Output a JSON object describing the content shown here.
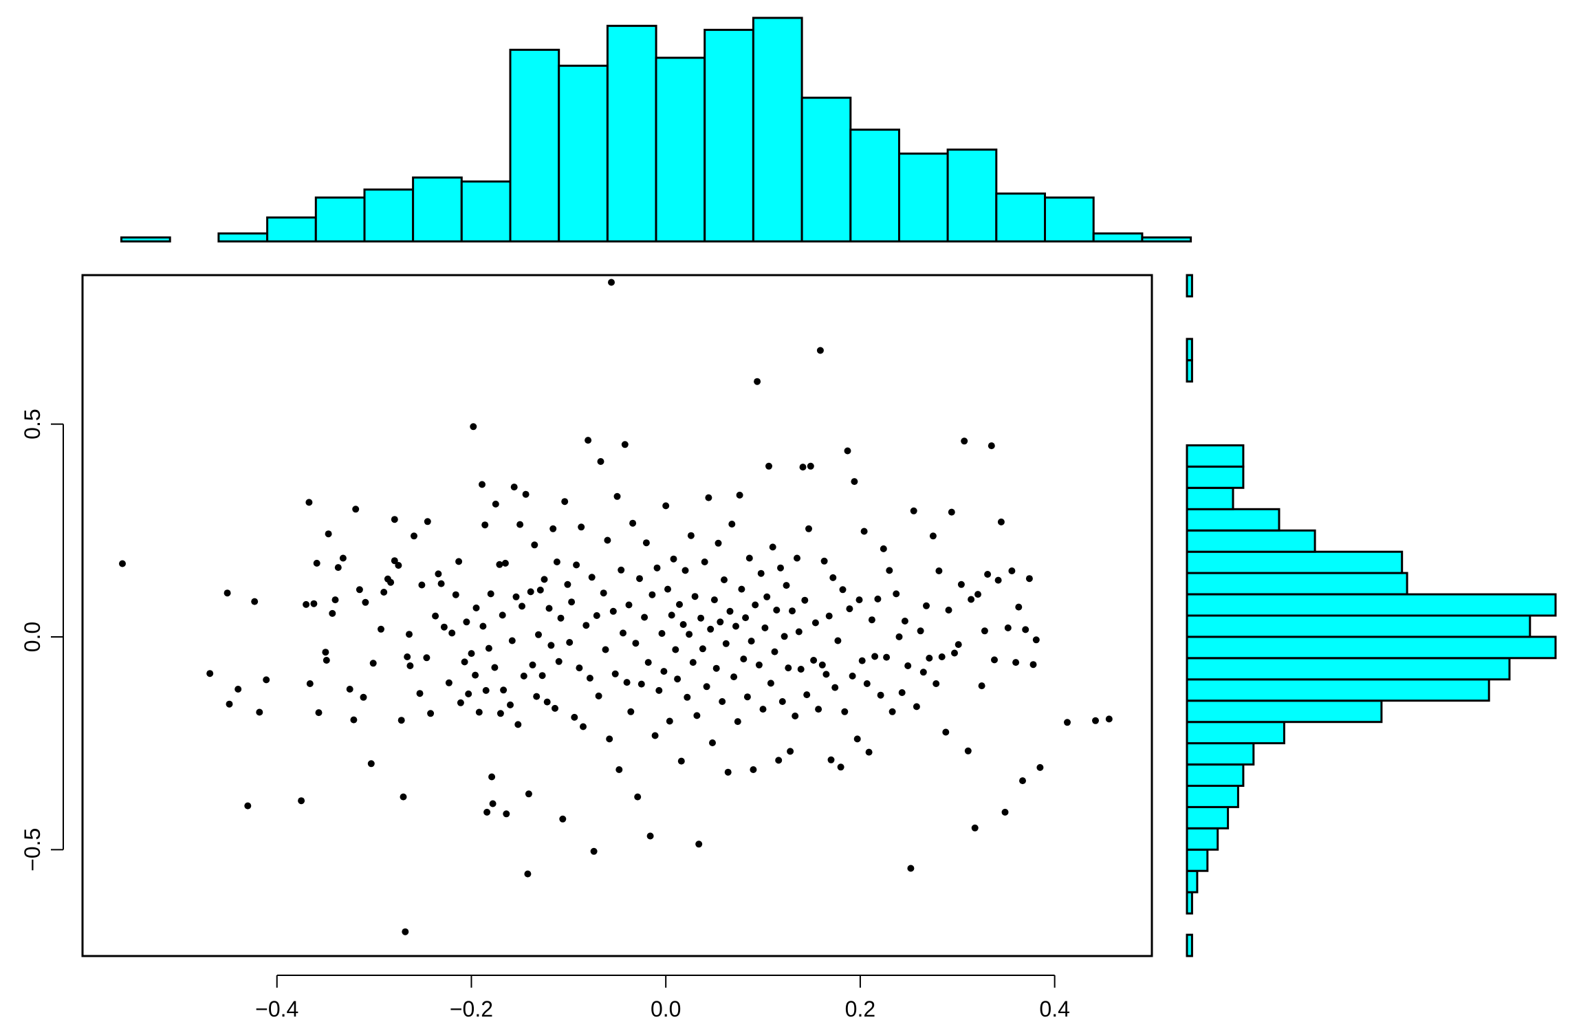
{
  "colors": {
    "bar_fill": "#00ffff",
    "stroke": "#000000",
    "point": "#000000"
  },
  "chart_data": [
    {
      "type": "scatter",
      "x_ticks": [
        -0.4,
        -0.2,
        0.0,
        0.2,
        0.4
      ],
      "x_tick_labels": [
        "−0.4",
        "−0.2",
        "0.0",
        "0.2",
        "0.4"
      ],
      "y_ticks": [
        -0.5,
        0.0,
        0.5
      ],
      "y_tick_labels": [
        "−0.5",
        "0.0",
        "0.5"
      ],
      "xlim": [
        -0.6,
        0.5
      ],
      "ylim": [
        -0.75,
        0.85
      ],
      "points": [
        [
          -0.559,
          0.172
        ],
        [
          -0.469,
          -0.086
        ],
        [
          -0.451,
          0.103
        ],
        [
          -0.449,
          -0.158
        ],
        [
          -0.44,
          -0.123
        ],
        [
          -0.43,
          -0.397
        ],
        [
          -0.423,
          0.083
        ],
        [
          -0.418,
          -0.177
        ],
        [
          -0.411,
          -0.101
        ],
        [
          -0.375,
          -0.385
        ],
        [
          -0.37,
          0.076
        ],
        [
          -0.367,
          0.316
        ],
        [
          -0.366,
          -0.11
        ],
        [
          -0.362,
          0.078
        ],
        [
          -0.359,
          0.173
        ],
        [
          -0.357,
          -0.178
        ],
        [
          -0.35,
          -0.036
        ],
        [
          -0.349,
          -0.055
        ],
        [
          -0.347,
          0.242
        ],
        [
          -0.343,
          0.055
        ],
        [
          -0.34,
          0.087
        ],
        [
          -0.337,
          0.163
        ],
        [
          -0.332,
          0.185
        ],
        [
          -0.325,
          -0.123
        ],
        [
          -0.321,
          -0.195
        ],
        [
          -0.319,
          0.3
        ],
        [
          -0.315,
          0.111
        ],
        [
          -0.311,
          -0.142
        ],
        [
          -0.309,
          0.081
        ],
        [
          -0.303,
          -0.298
        ],
        [
          -0.301,
          -0.062
        ],
        [
          -0.293,
          0.018
        ],
        [
          -0.29,
          0.105
        ],
        [
          -0.286,
          0.136
        ],
        [
          -0.283,
          0.128
        ],
        [
          -0.279,
          0.179
        ],
        [
          -0.279,
          0.276
        ],
        [
          -0.275,
          0.168
        ],
        [
          -0.272,
          -0.196
        ],
        [
          -0.27,
          -0.376
        ],
        [
          -0.268,
          -0.693
        ],
        [
          -0.266,
          -0.047
        ],
        [
          -0.264,
          0.006
        ],
        [
          -0.263,
          -0.068
        ],
        [
          -0.259,
          0.237
        ],
        [
          -0.253,
          -0.133
        ],
        [
          -0.251,
          0.122
        ],
        [
          -0.246,
          -0.049
        ],
        [
          -0.245,
          0.271
        ],
        [
          -0.242,
          -0.18
        ],
        [
          -0.237,
          0.049
        ],
        [
          -0.234,
          0.148
        ],
        [
          -0.231,
          0.125
        ],
        [
          -0.228,
          0.023
        ],
        [
          -0.223,
          -0.108
        ],
        [
          -0.22,
          0.009
        ],
        [
          -0.216,
          0.099
        ],
        [
          -0.213,
          0.177
        ],
        [
          -0.211,
          -0.155
        ],
        [
          -0.207,
          -0.059
        ],
        [
          -0.205,
          0.035
        ],
        [
          -0.203,
          -0.134
        ],
        [
          -0.2,
          -0.039
        ],
        [
          -0.198,
          0.494
        ],
        [
          -0.196,
          -0.09
        ],
        [
          -0.195,
          0.068
        ],
        [
          -0.192,
          -0.177
        ],
        [
          -0.189,
          0.358
        ],
        [
          -0.188,
          0.025
        ],
        [
          -0.186,
          0.263
        ],
        [
          -0.185,
          -0.126
        ],
        [
          -0.184,
          -0.412
        ],
        [
          -0.182,
          -0.027
        ],
        [
          -0.18,
          0.101
        ],
        [
          -0.179,
          -0.329
        ],
        [
          -0.178,
          -0.392
        ],
        [
          -0.176,
          -0.072
        ],
        [
          -0.175,
          0.312
        ],
        [
          -0.171,
          0.17
        ],
        [
          -0.17,
          -0.18
        ],
        [
          -0.168,
          0.051
        ],
        [
          -0.167,
          -0.125
        ],
        [
          -0.165,
          0.173
        ],
        [
          -0.164,
          -0.416
        ],
        [
          -0.16,
          -0.16
        ],
        [
          -0.158,
          -0.009
        ],
        [
          -0.156,
          0.352
        ],
        [
          -0.154,
          0.094
        ],
        [
          -0.152,
          -0.206
        ],
        [
          -0.15,
          0.264
        ],
        [
          -0.148,
          0.072
        ],
        [
          -0.146,
          -0.092
        ],
        [
          -0.144,
          0.335
        ],
        [
          -0.142,
          -0.557
        ],
        [
          -0.141,
          -0.369
        ],
        [
          -0.139,
          0.106
        ],
        [
          -0.137,
          -0.066
        ],
        [
          -0.135,
          0.216
        ],
        [
          -0.133,
          -0.14
        ],
        [
          -0.131,
          0.005
        ],
        [
          -0.129,
          0.11
        ],
        [
          -0.127,
          -0.091
        ],
        [
          -0.125,
          0.135
        ],
        [
          -0.122,
          -0.153
        ],
        [
          -0.12,
          0.067
        ],
        [
          -0.118,
          -0.02
        ],
        [
          -0.116,
          0.254
        ],
        [
          -0.114,
          -0.168
        ],
        [
          -0.112,
          0.176
        ],
        [
          -0.11,
          -0.058
        ],
        [
          -0.108,
          0.044
        ],
        [
          -0.106,
          -0.428
        ],
        [
          -0.104,
          0.318
        ],
        [
          -0.101,
          0.123
        ],
        [
          -0.099,
          -0.013
        ],
        [
          -0.097,
          0.082
        ],
        [
          -0.094,
          -0.189
        ],
        [
          -0.092,
          0.169
        ],
        [
          -0.089,
          -0.073
        ],
        [
          -0.087,
          0.258
        ],
        [
          -0.085,
          -0.211
        ],
        [
          -0.082,
          0.027
        ],
        [
          -0.08,
          0.462
        ],
        [
          -0.078,
          -0.097
        ],
        [
          -0.076,
          0.14
        ],
        [
          -0.074,
          -0.504
        ],
        [
          -0.071,
          0.05
        ],
        [
          -0.069,
          -0.139
        ],
        [
          -0.067,
          0.412
        ],
        [
          -0.064,
          0.103
        ],
        [
          -0.062,
          -0.03
        ],
        [
          -0.06,
          0.227
        ],
        [
          -0.058,
          -0.24
        ],
        [
          -0.056,
          0.833
        ],
        [
          -0.054,
          0.06
        ],
        [
          -0.052,
          -0.087
        ],
        [
          -0.05,
          0.33
        ],
        [
          -0.048,
          -0.312
        ],
        [
          -0.046,
          0.157
        ],
        [
          -0.044,
          0.009
        ],
        [
          -0.042,
          0.452
        ],
        [
          -0.04,
          -0.107
        ],
        [
          -0.038,
          0.075
        ],
        [
          -0.036,
          -0.176
        ],
        [
          -0.034,
          0.267
        ],
        [
          -0.031,
          -0.015
        ],
        [
          -0.029,
          -0.376
        ],
        [
          -0.027,
          0.137
        ],
        [
          -0.025,
          -0.111
        ],
        [
          -0.022,
          0.046
        ],
        [
          -0.02,
          0.221
        ],
        [
          -0.018,
          -0.06
        ],
        [
          -0.016,
          -0.468
        ],
        [
          -0.014,
          0.099
        ],
        [
          -0.011,
          -0.232
        ],
        [
          -0.009,
          0.162
        ],
        [
          -0.007,
          -0.126
        ],
        [
          -0.004,
          0.008
        ],
        [
          -0.002,
          -0.081
        ],
        [
          0.0,
          0.308
        ],
        [
          0.002,
          0.112
        ],
        [
          0.004,
          -0.198
        ],
        [
          0.006,
          0.051
        ],
        [
          0.008,
          0.183
        ],
        [
          0.01,
          -0.03
        ],
        [
          0.012,
          -0.099
        ],
        [
          0.014,
          0.076
        ],
        [
          0.016,
          -0.292
        ],
        [
          0.018,
          0.029
        ],
        [
          0.02,
          0.156
        ],
        [
          0.022,
          -0.142
        ],
        [
          0.024,
          0.006
        ],
        [
          0.026,
          0.238
        ],
        [
          0.028,
          -0.06
        ],
        [
          0.03,
          0.095
        ],
        [
          0.032,
          -0.185
        ],
        [
          0.034,
          -0.487
        ],
        [
          0.036,
          0.044
        ],
        [
          0.038,
          -0.028
        ],
        [
          0.04,
          0.176
        ],
        [
          0.042,
          -0.117
        ],
        [
          0.044,
          0.327
        ],
        [
          0.046,
          0.018
        ],
        [
          0.048,
          -0.249
        ],
        [
          0.05,
          0.087
        ],
        [
          0.052,
          -0.074
        ],
        [
          0.054,
          0.22
        ],
        [
          0.056,
          0.035
        ],
        [
          0.058,
          -0.152
        ],
        [
          0.06,
          0.134
        ],
        [
          0.062,
          -0.016
        ],
        [
          0.064,
          -0.318
        ],
        [
          0.066,
          0.06
        ],
        [
          0.068,
          0.265
        ],
        [
          0.07,
          -0.094
        ],
        [
          0.072,
          0.025
        ],
        [
          0.074,
          -0.199
        ],
        [
          0.076,
          0.333
        ],
        [
          0.078,
          0.112
        ],
        [
          0.08,
          -0.052
        ],
        [
          0.082,
          0.045
        ],
        [
          0.084,
          -0.141
        ],
        [
          0.086,
          0.185
        ],
        [
          0.088,
          -0.01
        ],
        [
          0.09,
          -0.312
        ],
        [
          0.092,
          0.075
        ],
        [
          0.094,
          0.6
        ],
        [
          0.096,
          -0.066
        ],
        [
          0.098,
          0.149
        ],
        [
          0.1,
          -0.17
        ],
        [
          0.102,
          0.021
        ],
        [
          0.104,
          0.094
        ],
        [
          0.106,
          0.401
        ],
        [
          0.108,
          -0.109
        ],
        [
          0.11,
          0.211
        ],
        [
          0.112,
          -0.035
        ],
        [
          0.114,
          0.063
        ],
        [
          0.116,
          -0.29
        ],
        [
          0.118,
          0.162
        ],
        [
          0.12,
          -0.152
        ],
        [
          0.122,
          0.001
        ],
        [
          0.124,
          0.121
        ],
        [
          0.126,
          -0.073
        ],
        [
          0.128,
          -0.269
        ],
        [
          0.13,
          0.061
        ],
        [
          0.133,
          -0.186
        ],
        [
          0.135,
          0.185
        ],
        [
          0.137,
          0.012
        ],
        [
          0.139,
          -0.076
        ],
        [
          0.141,
          0.399
        ],
        [
          0.143,
          0.086
        ],
        [
          0.145,
          -0.136
        ],
        [
          0.147,
          0.254
        ],
        [
          0.149,
          0.401
        ],
        [
          0.152,
          -0.055
        ],
        [
          0.154,
          0.033
        ],
        [
          0.157,
          -0.17
        ],
        [
          0.159,
          0.673
        ],
        [
          0.161,
          -0.066
        ],
        [
          0.163,
          0.178
        ],
        [
          0.165,
          -0.088
        ],
        [
          0.168,
          0.049
        ],
        [
          0.17,
          -0.289
        ],
        [
          0.172,
          0.139
        ],
        [
          0.174,
          -0.119
        ],
        [
          0.177,
          -0.009
        ],
        [
          0.18,
          -0.306
        ],
        [
          0.182,
          0.111
        ],
        [
          0.184,
          -0.176
        ],
        [
          0.187,
          0.437
        ],
        [
          0.189,
          0.066
        ],
        [
          0.192,
          -0.092
        ],
        [
          0.194,
          0.365
        ],
        [
          0.197,
          -0.24
        ],
        [
          0.199,
          0.087
        ],
        [
          0.202,
          -0.056
        ],
        [
          0.204,
          0.248
        ],
        [
          0.207,
          -0.11
        ],
        [
          0.209,
          -0.271
        ],
        [
          0.212,
          0.04
        ],
        [
          0.215,
          -0.046
        ],
        [
          0.218,
          0.089
        ],
        [
          0.221,
          -0.137
        ],
        [
          0.224,
          0.207
        ],
        [
          0.227,
          -0.048
        ],
        [
          0.23,
          0.156
        ],
        [
          0.233,
          -0.176
        ],
        [
          0.237,
          0.101
        ],
        [
          0.24,
          0.0
        ],
        [
          0.243,
          -0.131
        ],
        [
          0.246,
          0.037
        ],
        [
          0.249,
          -0.068
        ],
        [
          0.252,
          -0.544
        ],
        [
          0.255,
          0.296
        ],
        [
          0.258,
          -0.164
        ],
        [
          0.262,
          0.014
        ],
        [
          0.265,
          -0.083
        ],
        [
          0.268,
          0.073
        ],
        [
          0.271,
          -0.05
        ],
        [
          0.275,
          0.237
        ],
        [
          0.278,
          -0.11
        ],
        [
          0.281,
          0.155
        ],
        [
          0.284,
          -0.047
        ],
        [
          0.288,
          -0.224
        ],
        [
          0.291,
          0.063
        ],
        [
          0.294,
          0.293
        ],
        [
          0.297,
          -0.038
        ],
        [
          0.301,
          -0.018
        ],
        [
          0.304,
          0.123
        ],
        [
          0.307,
          0.46
        ],
        [
          0.311,
          -0.268
        ],
        [
          0.314,
          0.088
        ],
        [
          0.318,
          -0.449
        ],
        [
          0.321,
          0.1
        ],
        [
          0.325,
          -0.115
        ],
        [
          0.328,
          0.014
        ],
        [
          0.331,
          0.147
        ],
        [
          0.335,
          0.449
        ],
        [
          0.338,
          -0.054
        ],
        [
          0.342,
          0.133
        ],
        [
          0.345,
          0.27
        ],
        [
          0.349,
          -0.412
        ],
        [
          0.352,
          0.021
        ],
        [
          0.356,
          0.155
        ],
        [
          0.36,
          -0.06
        ],
        [
          0.363,
          0.07
        ],
        [
          0.367,
          -0.338
        ],
        [
          0.37,
          0.017
        ],
        [
          0.374,
          0.137
        ],
        [
          0.378,
          -0.065
        ],
        [
          0.381,
          -0.007
        ],
        [
          0.385,
          -0.307
        ],
        [
          0.413,
          -0.201
        ],
        [
          0.442,
          -0.197
        ],
        [
          0.456,
          -0.193
        ]
      ]
    },
    {
      "type": "bar",
      "orientation": "vertical",
      "bin_edges": [
        -0.56,
        -0.51,
        -0.46,
        -0.41,
        -0.36,
        -0.31,
        -0.26,
        -0.21,
        -0.16,
        -0.11,
        -0.06,
        -0.01,
        0.04,
        0.09,
        0.14,
        0.19,
        0.24,
        0.29,
        0.34,
        0.39,
        0.44,
        0.49,
        0.54
      ],
      "values": [
        1,
        0,
        2,
        6,
        11,
        13,
        16,
        15,
        48,
        44,
        54,
        46,
        53,
        56,
        36,
        28,
        22,
        23,
        12,
        11,
        2,
        1
      ]
    },
    {
      "type": "bar",
      "orientation": "horizontal",
      "bin_edges": [
        -0.75,
        -0.7,
        -0.65,
        -0.6,
        -0.55,
        -0.5,
        -0.45,
        -0.4,
        -0.35,
        -0.3,
        -0.25,
        -0.2,
        -0.15,
        -0.1,
        -0.05,
        0.0,
        0.05,
        0.1,
        0.15,
        0.2,
        0.25,
        0.3,
        0.35,
        0.4,
        0.45,
        0.5,
        0.55,
        0.6,
        0.65,
        0.7,
        0.75,
        0.8,
        0.85
      ],
      "values": [
        1,
        0,
        1,
        2,
        4,
        6,
        8,
        10,
        11,
        13,
        19,
        38,
        59,
        63,
        72,
        67,
        72,
        43,
        42,
        25,
        18,
        9,
        11,
        11,
        0,
        0,
        0,
        1,
        1,
        0,
        0,
        1
      ]
    }
  ]
}
